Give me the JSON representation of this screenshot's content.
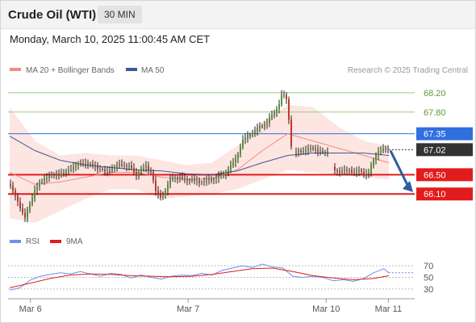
{
  "header": {
    "title": "Crude Oil (WTI)",
    "timeframe": "30 MIN"
  },
  "timestamp": "Monday, March 10, 2025 11:00:45 AM CET",
  "colors": {
    "ma20": "#f28b82",
    "ma50": "#3d5a98",
    "bollinger_fill": "#fde0dc",
    "support": "#e21c1c",
    "pivot": "#2f6fe0",
    "resistance": "#9bcb7a",
    "current": "#333333",
    "rsi": "#6c8fe8",
    "rsi_ma": "#e21c1c",
    "arrow": "#2d5e9e",
    "candle": "#4a9a2f",
    "candle_bear": "#c0392b"
  },
  "chart_data": [
    {
      "type": "candlestick",
      "legend": [
        "MA 20 + Bollinger Bands",
        "MA 50"
      ],
      "credit": "Research © 2025 Trading Central",
      "x_ticks": [
        "Mar 6",
        "Mar 7",
        "Mar 10",
        "Mar 11"
      ],
      "y_range": [
        65.35,
        68.45
      ],
      "levels": [
        {
          "label": "68.20",
          "value": 68.2,
          "kind": "resistance"
        },
        {
          "label": "67.80",
          "value": 67.8,
          "kind": "resistance"
        },
        {
          "label": "67.35",
          "value": 67.35,
          "kind": "pivot"
        },
        {
          "label": "67.02",
          "value": 67.02,
          "kind": "current"
        },
        {
          "label": "66.50",
          "value": 66.5,
          "kind": "support"
        },
        {
          "label": "66.10",
          "value": 66.1,
          "kind": "support"
        }
      ],
      "price_path": [
        [
          0,
          66.3
        ],
        [
          2,
          65.85
        ],
        [
          3,
          65.6
        ],
        [
          5,
          66.2
        ],
        [
          7,
          66.45
        ],
        [
          9,
          66.5
        ],
        [
          11,
          66.55
        ],
        [
          13,
          66.7
        ],
        [
          15,
          66.75
        ],
        [
          16,
          66.7
        ],
        [
          18,
          66.62
        ],
        [
          19,
          66.55
        ],
        [
          20,
          66.62
        ],
        [
          21,
          66.68
        ],
        [
          22,
          66.72
        ],
        [
          24,
          66.65
        ],
        [
          25,
          66.5
        ],
        [
          26,
          66.6
        ],
        [
          27,
          66.68
        ],
        [
          28,
          66.55
        ],
        [
          29,
          66.1
        ],
        [
          30,
          66.05
        ],
        [
          31,
          66.2
        ],
        [
          32,
          66.45
        ],
        [
          34,
          66.42
        ],
        [
          36,
          66.38
        ],
        [
          38,
          66.35
        ],
        [
          40,
          66.4
        ],
        [
          42,
          66.48
        ],
        [
          43,
          66.6
        ],
        [
          44,
          66.7
        ],
        [
          45,
          66.9
        ],
        [
          46,
          67.2
        ],
        [
          47,
          67.3
        ],
        [
          49,
          67.45
        ],
        [
          51,
          67.6
        ],
        [
          53,
          67.9
        ],
        [
          54,
          68.2
        ],
        [
          55,
          68.0
        ],
        [
          55.5,
          67.2
        ],
        [
          56,
          66.95
        ],
        [
          58,
          67.0
        ],
        [
          60,
          67.05
        ],
        [
          62,
          66.95
        ],
        [
          63,
          67.0
        ],
        [
          64,
          66.6
        ],
        [
          65,
          66.55
        ],
        [
          66,
          66.6
        ],
        [
          67,
          66.58
        ],
        [
          68,
          66.55
        ],
        [
          69,
          66.6
        ],
        [
          70,
          66.5
        ],
        [
          71,
          66.55
        ],
        [
          72,
          66.8
        ],
        [
          73,
          67.0
        ],
        [
          74,
          67.05
        ],
        [
          75,
          67.02
        ]
      ],
      "ma20": [
        [
          0,
          66.55
        ],
        [
          5,
          66.3
        ],
        [
          10,
          66.35
        ],
        [
          15,
          66.45
        ],
        [
          20,
          66.55
        ],
        [
          25,
          66.55
        ],
        [
          30,
          66.45
        ],
        [
          35,
          66.4
        ],
        [
          40,
          66.42
        ],
        [
          45,
          66.6
        ],
        [
          50,
          67.0
        ],
        [
          55,
          67.35
        ],
        [
          60,
          67.2
        ],
        [
          65,
          67.05
        ],
        [
          70,
          66.9
        ],
        [
          75,
          66.75
        ]
      ],
      "ma50": [
        [
          0,
          67.3
        ],
        [
          5,
          67.0
        ],
        [
          10,
          66.8
        ],
        [
          15,
          66.7
        ],
        [
          20,
          66.65
        ],
        [
          25,
          66.6
        ],
        [
          30,
          66.58
        ],
        [
          35,
          66.52
        ],
        [
          40,
          66.5
        ],
        [
          45,
          66.58
        ],
        [
          50,
          66.75
        ],
        [
          55,
          66.9
        ],
        [
          60,
          66.95
        ],
        [
          65,
          66.95
        ],
        [
          70,
          66.95
        ],
        [
          75,
          66.9
        ]
      ],
      "bb_upper": [
        [
          0,
          67.9
        ],
        [
          5,
          67.2
        ],
        [
          10,
          66.9
        ],
        [
          15,
          66.95
        ],
        [
          20,
          66.9
        ],
        [
          25,
          66.9
        ],
        [
          30,
          66.8
        ],
        [
          35,
          66.7
        ],
        [
          40,
          66.75
        ],
        [
          45,
          67.1
        ],
        [
          50,
          67.6
        ],
        [
          55,
          67.95
        ],
        [
          60,
          67.9
        ],
        [
          65,
          67.5
        ],
        [
          70,
          67.2
        ],
        [
          75,
          67.1
        ]
      ],
      "bb_lower": [
        [
          0,
          65.6
        ],
        [
          5,
          65.5
        ],
        [
          10,
          65.75
        ],
        [
          15,
          66.0
        ],
        [
          20,
          66.2
        ],
        [
          25,
          66.2
        ],
        [
          30,
          66.0
        ],
        [
          35,
          66.05
        ],
        [
          40,
          66.1
        ],
        [
          45,
          66.2
        ],
        [
          50,
          66.4
        ],
        [
          55,
          66.6
        ],
        [
          60,
          66.55
        ],
        [
          65,
          66.5
        ],
        [
          70,
          66.45
        ],
        [
          75,
          66.4
        ]
      ]
    },
    {
      "type": "line",
      "legend": [
        "RSI",
        "9MA"
      ],
      "y_ticks": [
        70,
        50,
        30
      ],
      "y_range": [
        20,
        80
      ],
      "series": [
        {
          "name": "RSI",
          "values": [
            [
              0,
              28
            ],
            [
              2,
              32
            ],
            [
              4,
              45
            ],
            [
              6,
              52
            ],
            [
              8,
              55
            ],
            [
              10,
              58
            ],
            [
              12,
              56
            ],
            [
              14,
              60
            ],
            [
              16,
              56
            ],
            [
              18,
              52
            ],
            [
              20,
              57
            ],
            [
              22,
              55
            ],
            [
              24,
              49
            ],
            [
              26,
              54
            ],
            [
              28,
              50
            ],
            [
              30,
              47
            ],
            [
              32,
              52
            ],
            [
              34,
              54
            ],
            [
              36,
              53
            ],
            [
              38,
              57
            ],
            [
              40,
              54
            ],
            [
              42,
              62
            ],
            [
              44,
              66
            ],
            [
              46,
              70
            ],
            [
              48,
              67
            ],
            [
              50,
              73
            ],
            [
              52,
              68
            ],
            [
              54,
              66
            ],
            [
              56,
              52
            ],
            [
              58,
              50
            ],
            [
              60,
              52
            ],
            [
              62,
              50
            ],
            [
              64,
              44
            ],
            [
              66,
              46
            ],
            [
              68,
              43
            ],
            [
              70,
              48
            ],
            [
              72,
              58
            ],
            [
              74,
              65
            ],
            [
              75,
              58
            ]
          ]
        },
        {
          "name": "9MA",
          "values": [
            [
              0,
              32
            ],
            [
              4,
              40
            ],
            [
              8,
              48
            ],
            [
              12,
              54
            ],
            [
              16,
              56
            ],
            [
              20,
              55
            ],
            [
              24,
              53
            ],
            [
              28,
              52
            ],
            [
              32,
              51
            ],
            [
              36,
              52
            ],
            [
              40,
              55
            ],
            [
              44,
              60
            ],
            [
              48,
              65
            ],
            [
              52,
              66
            ],
            [
              56,
              60
            ],
            [
              60,
              53
            ],
            [
              64,
              49
            ],
            [
              68,
              46
            ],
            [
              72,
              48
            ],
            [
              75,
              53
            ]
          ]
        }
      ]
    }
  ]
}
